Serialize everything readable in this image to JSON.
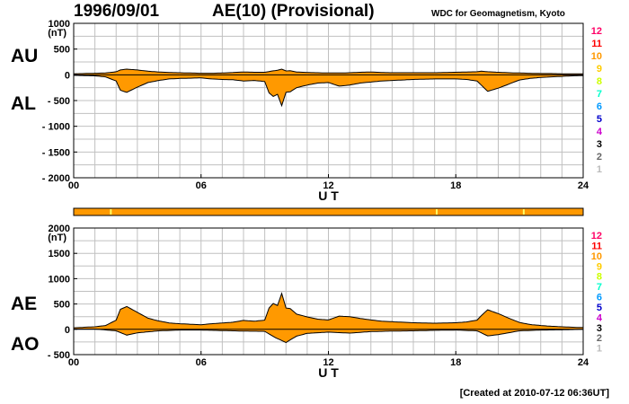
{
  "header": {
    "date": "1996/09/01",
    "title": "AE(10) (Provisional)",
    "source": "WDC for Geomagnetism, Kyoto"
  },
  "labels": {
    "au": "AU",
    "al": "AL",
    "ae": "AE",
    "ao": "AO",
    "unit": "(nT)",
    "xaxis": "U T"
  },
  "footer": {
    "created": "[Created at 2010-07-12 06:36UT]"
  },
  "colors": {
    "fill": "#ff9900",
    "line": "#000000",
    "grid": "#c0c0c0",
    "bar": "#ff9900",
    "bar_marker": "#ffff66"
  },
  "station_legend": [
    {
      "label": "12",
      "color": "#ff0066"
    },
    {
      "label": "11",
      "color": "#ff0000"
    },
    {
      "label": "10",
      "color": "#ff9900"
    },
    {
      "label": "9",
      "color": "#ffcc00"
    },
    {
      "label": "8",
      "color": "#ccff00"
    },
    {
      "label": "7",
      "color": "#00ffcc"
    },
    {
      "label": "6",
      "color": "#0099ff"
    },
    {
      "label": "5",
      "color": "#0000cc"
    },
    {
      "label": "4",
      "color": "#cc00cc"
    },
    {
      "label": "3",
      "color": "#000000"
    },
    {
      "label": "2",
      "color": "#666666"
    },
    {
      "label": "1",
      "color": "#bbbbbb"
    }
  ],
  "station_bar": {
    "markers_hour": [
      1.75,
      17.1,
      21.2
    ]
  },
  "chart_data": [
    {
      "type": "area",
      "panel": "AU/AL",
      "ylim": [
        -2000,
        1000
      ],
      "yticks": [
        1000,
        500,
        0,
        -500,
        -1000,
        -1500,
        -2000
      ],
      "ytick_labels": [
        "1000",
        "500",
        "0",
        "- 500",
        "- 1000",
        "- 1500",
        "- 2000"
      ],
      "xlim": [
        0,
        24
      ],
      "xticks": [
        0,
        6,
        12,
        18,
        24
      ],
      "xtick_labels": [
        "00",
        "06",
        "12",
        "18",
        "24"
      ],
      "xlabel": "U T",
      "series": [
        {
          "name": "AU",
          "x": [
            0,
            0.5,
            1,
            1.5,
            2,
            2.2,
            2.5,
            3,
            3.5,
            4,
            4.5,
            5,
            5.5,
            6,
            6.5,
            7,
            7.5,
            8,
            8.5,
            9,
            9.3,
            9.6,
            9.8,
            10,
            10.2,
            10.5,
            11,
            11.5,
            12,
            12.5,
            13,
            13.5,
            14,
            14.5,
            15,
            15.5,
            16,
            16.5,
            17,
            17.5,
            18,
            18.5,
            19,
            19.2,
            19.5,
            20,
            20.5,
            21,
            21.5,
            22,
            22.5,
            23,
            23.5,
            24
          ],
          "values": [
            20,
            25,
            30,
            35,
            60,
            95,
            110,
            95,
            70,
            55,
            45,
            40,
            35,
            30,
            30,
            35,
            45,
            55,
            50,
            50,
            70,
            90,
            110,
            75,
            80,
            55,
            45,
            40,
            35,
            35,
            40,
            50,
            55,
            45,
            40,
            40,
            40,
            40,
            40,
            45,
            50,
            55,
            60,
            70,
            60,
            50,
            40,
            35,
            30,
            25,
            25,
            20,
            20,
            20
          ]
        },
        {
          "name": "AL",
          "x": [
            0,
            0.5,
            1,
            1.5,
            2,
            2.2,
            2.5,
            3,
            3.5,
            4,
            4.5,
            5,
            5.5,
            6,
            6.5,
            7,
            7.5,
            8,
            8.5,
            9,
            9.2,
            9.4,
            9.6,
            9.8,
            10,
            10.2,
            10.5,
            11,
            11.5,
            12,
            12.5,
            13,
            13.5,
            14,
            14.5,
            15,
            15.5,
            16,
            16.5,
            17,
            17.5,
            18,
            18.5,
            19,
            19.2,
            19.5,
            20,
            20.5,
            21,
            21.5,
            22,
            22.5,
            23,
            23.5,
            24
          ],
          "values": [
            -10,
            -15,
            -20,
            -40,
            -120,
            -300,
            -340,
            -240,
            -150,
            -110,
            -80,
            -70,
            -65,
            -60,
            -80,
            -90,
            -95,
            -120,
            -110,
            -130,
            -350,
            -420,
            -380,
            -600,
            -340,
            -330,
            -250,
            -200,
            -160,
            -150,
            -220,
            -200,
            -160,
            -140,
            -120,
            -110,
            -100,
            -90,
            -85,
            -80,
            -80,
            -80,
            -90,
            -120,
            -200,
            -320,
            -260,
            -180,
            -100,
            -70,
            -50,
            -40,
            -30,
            -20,
            -15
          ]
        }
      ]
    },
    {
      "type": "area",
      "panel": "AE/AO",
      "ylim": [
        -500,
        2000
      ],
      "yticks": [
        2000,
        1500,
        1000,
        500,
        0,
        -500
      ],
      "ytick_labels": [
        "2000",
        "1500",
        "1000",
        "500",
        "0",
        "- 500"
      ],
      "xlim": [
        0,
        24
      ],
      "xticks": [
        0,
        6,
        12,
        18,
        24
      ],
      "xtick_labels": [
        "00",
        "06",
        "12",
        "18",
        "24"
      ],
      "xlabel": "U T",
      "series": [
        {
          "name": "AE",
          "x": [
            0,
            0.5,
            1,
            1.5,
            2,
            2.2,
            2.5,
            3,
            3.5,
            4,
            4.5,
            5,
            5.5,
            6,
            6.5,
            7,
            7.5,
            8,
            8.5,
            9,
            9.2,
            9.4,
            9.6,
            9.8,
            10,
            10.2,
            10.5,
            11,
            11.5,
            12,
            12.5,
            13,
            13.5,
            14,
            14.5,
            15,
            15.5,
            16,
            16.5,
            17,
            17.5,
            18,
            18.5,
            19,
            19.2,
            19.5,
            20,
            20.5,
            21,
            21.5,
            22,
            22.5,
            23,
            23.5,
            24
          ],
          "values": [
            30,
            40,
            50,
            75,
            180,
            395,
            450,
            335,
            220,
            165,
            125,
            110,
            100,
            90,
            110,
            125,
            140,
            175,
            160,
            180,
            420,
            510,
            470,
            710,
            420,
            410,
            300,
            245,
            200,
            185,
            260,
            250,
            215,
            185,
            160,
            150,
            140,
            130,
            125,
            120,
            125,
            130,
            145,
            180,
            270,
            385,
            310,
            220,
            135,
            95,
            75,
            60,
            50,
            40,
            35
          ]
        },
        {
          "name": "AO",
          "x": [
            0,
            1,
            2,
            2.5,
            3,
            4,
            5,
            6,
            7,
            8,
            9,
            9.5,
            10,
            10.5,
            11,
            12,
            13,
            14,
            15,
            16,
            17,
            18,
            19,
            19.5,
            20,
            21,
            22,
            23,
            24
          ],
          "values": [
            5,
            5,
            -30,
            -115,
            -70,
            -30,
            -15,
            -15,
            -25,
            -35,
            -40,
            -165,
            -260,
            -135,
            -80,
            -55,
            -75,
            -45,
            -35,
            -30,
            -20,
            -15,
            -30,
            -130,
            -105,
            -30,
            -15,
            -10,
            0
          ]
        }
      ]
    }
  ]
}
